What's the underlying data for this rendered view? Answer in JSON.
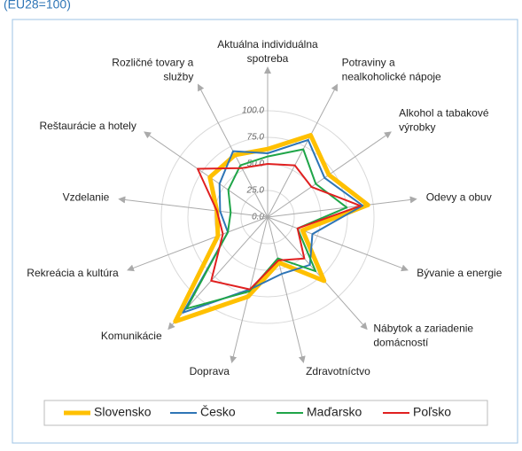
{
  "chart_data": {
    "type": "radar",
    "title": "(EU28=100)",
    "categories": [
      "Aktuálna individuálna spotreba",
      "Potraviny a nealkoholické nápoje",
      "Alkohol a tabakové výrobky",
      "Odevy a obuv",
      "Bývanie a energie",
      "Nábytok a zariadenie domácností",
      "Zdravotníctvo",
      "Doprava",
      "Komunikácie",
      "Rekreácia a kultúra",
      "Vzdelanie",
      "Reštaurácie a hotely",
      "Rozličné tovary a služby"
    ],
    "series": [
      {
        "name": "Slovensko",
        "color": "#ffc000",
        "values": [
          64,
          87,
          70,
          95,
          35,
          80,
          44,
          77,
          131,
          50,
          48,
          66,
          66
        ]
      },
      {
        "name": "Česko",
        "color": "#2e75b6",
        "values": [
          60,
          82,
          65,
          90,
          45,
          60,
          55,
          70,
          120,
          40,
          45,
          55,
          70
        ]
      },
      {
        "name": "Maďarsko",
        "color": "#1fa548",
        "values": [
          57,
          72,
          55,
          75,
          30,
          68,
          40,
          72,
          115,
          40,
          35,
          45,
          55
        ]
      },
      {
        "name": "Poľsko",
        "color": "#e02020",
        "values": [
          50,
          55,
          50,
          88,
          30,
          52,
          42,
          70,
          80,
          45,
          48,
          80,
          52
        ]
      }
    ],
    "ylim": [
      0,
      140
    ],
    "yticks": [
      {
        "value": 0,
        "label": "0.0"
      },
      {
        "value": 25,
        "label": "25.0"
      },
      {
        "value": 50,
        "label": "50.0"
      },
      {
        "value": 75,
        "label": "75.0"
      },
      {
        "value": 100,
        "label": "100.0"
      }
    ],
    "grid": true,
    "legend": "bottom"
  }
}
